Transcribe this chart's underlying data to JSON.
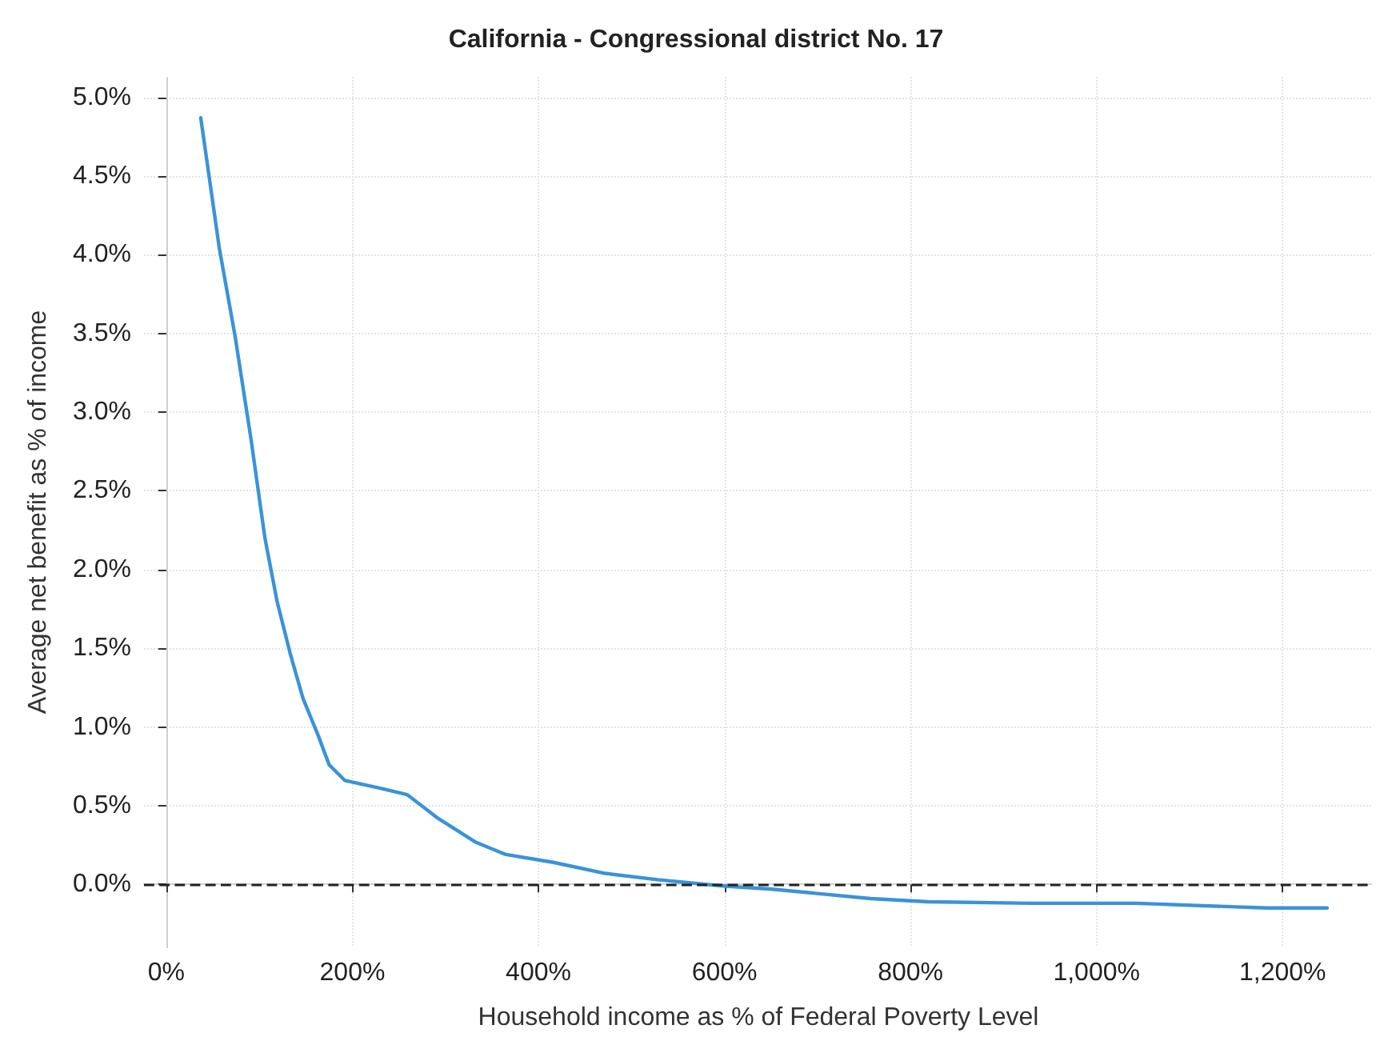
{
  "chart_data": {
    "type": "line",
    "title": "California - Congressional district No. 17",
    "xlabel": "Household income as % of Federal Poverty Level",
    "ylabel": "Average net benefit as % of income",
    "xlim": [
      -24,
      1297
    ],
    "ylim": [
      -0.4,
      5.13
    ],
    "xticks": [
      {
        "value": 0,
        "label": "0%"
      },
      {
        "value": 200,
        "label": "200%"
      },
      {
        "value": 400,
        "label": "400%"
      },
      {
        "value": 600,
        "label": "600%"
      },
      {
        "value": 800,
        "label": "800%"
      },
      {
        "value": 1000,
        "label": "1,000%"
      },
      {
        "value": 1200,
        "label": "1,200%"
      }
    ],
    "yticks": [
      {
        "value": 0,
        "label": "0.0%"
      },
      {
        "value": 0.5,
        "label": "0.5%"
      },
      {
        "value": 1,
        "label": "1.0%"
      },
      {
        "value": 1.5,
        "label": "1.5%"
      },
      {
        "value": 2,
        "label": "2.0%"
      },
      {
        "value": 2.5,
        "label": "2.5%"
      },
      {
        "value": 3,
        "label": "3.0%"
      },
      {
        "value": 3.5,
        "label": "3.5%"
      },
      {
        "value": 4,
        "label": "4.0%"
      },
      {
        "value": 4.5,
        "label": "4.5%"
      },
      {
        "value": 5,
        "label": "5.0%"
      }
    ],
    "grid": true,
    "marker": "none",
    "line_style": "solid",
    "ref_lines": [
      {
        "axis": "y",
        "value": 0,
        "color": "#222222",
        "line_style": "dashed"
      }
    ],
    "series": [
      {
        "color": "#3a93d8",
        "x": [
          37,
          57,
          74,
          91,
          106,
          119,
          133,
          147,
          163,
          175,
          192,
          231,
          259,
          292,
          332,
          365,
          416,
          472,
          528,
          598,
          651,
          757,
          819,
          931,
          1043,
          1183,
          1248
        ],
        "values": [
          4.87,
          4.04,
          3.48,
          2.83,
          2.2,
          1.8,
          1.47,
          1.18,
          0.95,
          0.76,
          0.66,
          0.61,
          0.57,
          0.42,
          0.27,
          0.19,
          0.14,
          0.07,
          0.03,
          -0.01,
          -0.03,
          -0.09,
          -0.11,
          -0.12,
          -0.12,
          -0.15,
          -0.15
        ]
      }
    ]
  }
}
